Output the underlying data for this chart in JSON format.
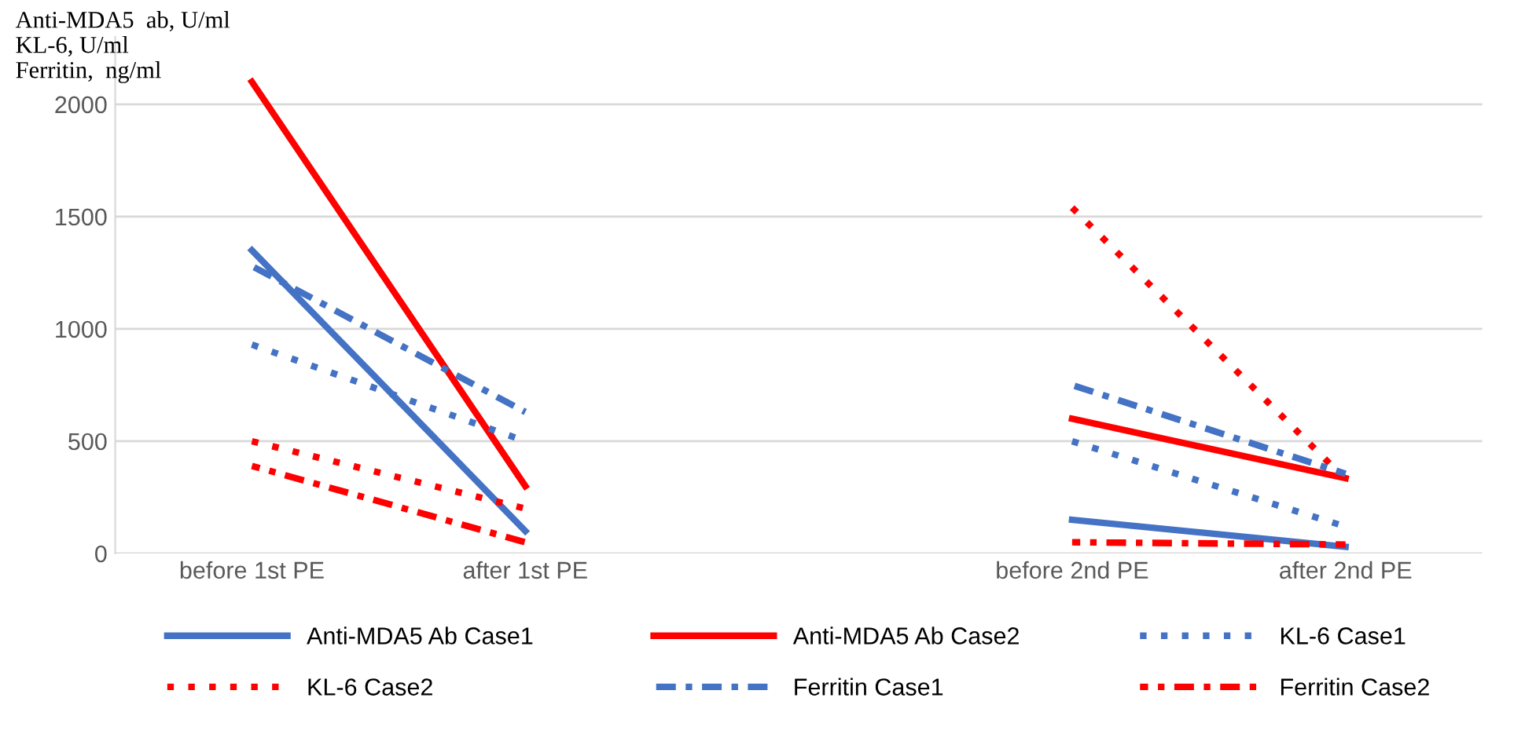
{
  "chart_data": {
    "type": "line",
    "ylabel": "Anti-MDA5  ab, U/ml\nKL-6, U/ml\nFerritin,  ng/ml",
    "categories": [
      "before 1st PE",
      "after 1st PE",
      null,
      "before 2nd PE",
      "after 2nd PE"
    ],
    "ylim": [
      0,
      2300
    ],
    "yticks": [
      0,
      500,
      1000,
      1500,
      2000
    ],
    "grid": "y",
    "legend": "bottom",
    "marker": "none",
    "series": [
      {
        "name": "Anti-MDA5 Ab Case1",
        "color": "#4472c4",
        "line_style": "solid",
        "values": [
          1350,
          100,
          null,
          150,
          30
        ]
      },
      {
        "name": "Anti-MDA5 Ab Case2",
        "color": "#ff0000",
        "line_style": "solid",
        "values": [
          2100,
          300,
          null,
          600,
          335
        ]
      },
      {
        "name": "KL-6 Case1",
        "color": "#4472c4",
        "line_style": "dotted",
        "values": [
          930,
          500,
          null,
          500,
          120
        ]
      },
      {
        "name": "KL-6 Case2",
        "color": "#ff0000",
        "line_style": "dotted",
        "values": [
          500,
          200,
          null,
          1540,
          330
        ]
      },
      {
        "name": "Ferritin Case1",
        "color": "#4472c4",
        "line_style": "dashdot",
        "values": [
          1280,
          630,
          null,
          750,
          355
        ]
      },
      {
        "name": "Ferritin Case2",
        "color": "#ff0000",
        "line_style": "dashdot",
        "values": [
          390,
          50,
          null,
          50,
          40
        ]
      }
    ]
  }
}
